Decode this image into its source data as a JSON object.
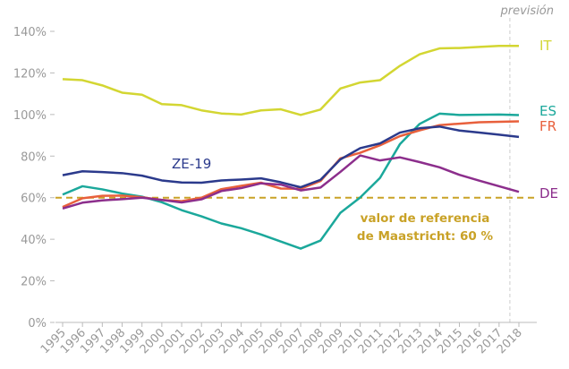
{
  "chart_data": {
    "type": "line",
    "categories": [
      "1995",
      "1996",
      "1997",
      "1998",
      "1999",
      "2000",
      "2001",
      "2002",
      "2003",
      "2004",
      "2005",
      "2006",
      "2007",
      "2008",
      "2009",
      "2010",
      "2011",
      "2012",
      "2013",
      "2014",
      "2015",
      "2016",
      "2017",
      "2018"
    ],
    "series": [
      {
        "name": "IT",
        "color": "#d3d632",
        "values": [
          117,
          116.5,
          114,
          110.5,
          109.5,
          105,
          104.5,
          102,
          100.5,
          100,
          102,
          102.5,
          99.8,
          102.4,
          112.5,
          115.4,
          116.5,
          123.4,
          129,
          131.8,
          132,
          132.5,
          133,
          133
        ]
      },
      {
        "name": "ES",
        "color": "#1ba89b",
        "values": [
          61.5,
          65.5,
          64,
          62,
          60.5,
          57.8,
          54,
          51,
          47.6,
          45.3,
          42.3,
          38.9,
          35.5,
          39.4,
          52.7,
          60.1,
          69.5,
          85.7,
          95.5,
          100.4,
          99.8,
          99.9,
          100,
          99.7
        ]
      },
      {
        "name": "FR",
        "color": "#e8603c",
        "values": [
          55.5,
          59.7,
          60.9,
          61,
          60.2,
          58.9,
          58.3,
          60,
          64.1,
          65.7,
          67.2,
          64.4,
          64.3,
          68,
          78.9,
          81.6,
          85.2,
          89.6,
          92.4,
          94.9,
          95.6,
          96.3,
          96.5,
          96.7
        ]
      },
      {
        "name": "DE",
        "color": "#8c2e8c",
        "values": [
          54.8,
          57.6,
          58.7,
          59.3,
          60,
          58.9,
          57.7,
          59.2,
          63.2,
          64.6,
          66.9,
          66.3,
          63.5,
          64.9,
          72.4,
          80.3,
          77.9,
          79.4,
          77.1,
          74.6,
          71,
          68.2,
          65.5,
          62.8
        ]
      },
      {
        "name": "ZE-19",
        "color": "#2b3a8c",
        "values": [
          70.8,
          72.7,
          72.3,
          71.8,
          70.6,
          68.3,
          67.3,
          67.2,
          68.3,
          68.7,
          69.3,
          67.4,
          65,
          68.6,
          78.4,
          83.8,
          86.1,
          91.3,
          93.4,
          94.2,
          92.3,
          91.3,
          90.3,
          89.2
        ]
      }
    ],
    "reference": {
      "value": 60,
      "color": "#c9a227",
      "label": [
        "valor de referencia",
        "de Maastricht: 60 %"
      ]
    },
    "forecast_label": "previsión",
    "ylim": [
      0,
      140
    ],
    "yticks": [
      {
        "value": 0,
        "label": "0%"
      },
      {
        "value": 20,
        "label": "20%"
      },
      {
        "value": 40,
        "label": "40%"
      },
      {
        "value": 60,
        "label": "60%"
      },
      {
        "value": 80,
        "label": "80%"
      },
      {
        "value": 100,
        "label": "100%"
      },
      {
        "value": 120,
        "label": "120%"
      },
      {
        "value": 140,
        "label": "140%"
      }
    ]
  }
}
